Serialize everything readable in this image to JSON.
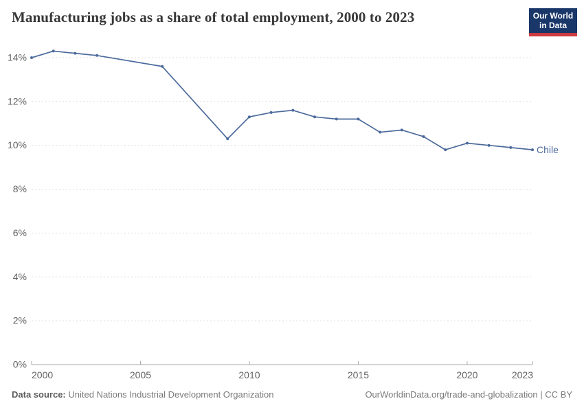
{
  "header": {
    "title": "Manufacturing jobs as a share of total employment, 2000 to 2023",
    "logo": {
      "line1": "Our World",
      "line2": "in Data"
    }
  },
  "chart_data": {
    "type": "line",
    "title": "Manufacturing jobs as a share of total employment, 2000 to 2023",
    "series": [
      {
        "name": "Chile",
        "color": "#4C6A9C",
        "x": [
          2000,
          2001,
          2002,
          2003,
          2006,
          2009,
          2010,
          2011,
          2012,
          2013,
          2014,
          2015,
          2016,
          2017,
          2018,
          2019,
          2020,
          2021,
          2022,
          2023
        ],
        "values": [
          14.0,
          14.3,
          14.2,
          14.1,
          13.6,
          10.3,
          11.3,
          11.5,
          11.6,
          11.3,
          11.2,
          11.2,
          10.6,
          10.7,
          10.4,
          9.8,
          10.1,
          10.0,
          9.9,
          9.8
        ]
      }
    ],
    "xlabel": "",
    "ylabel": "",
    "xlim": [
      2000,
      2023
    ],
    "ylim": [
      0,
      14
    ],
    "yticks": [
      0,
      2,
      4,
      6,
      8,
      10,
      12,
      14
    ],
    "ytick_labels": [
      "0%",
      "2%",
      "4%",
      "6%",
      "8%",
      "10%",
      "12%",
      "14%"
    ],
    "xticks": [
      2000,
      2005,
      2010,
      2015,
      2020,
      2023
    ],
    "xtick_labels": [
      "2000",
      "2005",
      "2010",
      "2015",
      "2020",
      "2023"
    ],
    "grid": "horizontal-dashed",
    "legend_position": "end-of-line-label"
  },
  "footer": {
    "datasource_label": "Data source:",
    "datasource_value": " United Nations Industrial Development Organization",
    "link_text": "OurWorldinData.org/trade-and-globalization | CC BY"
  },
  "colors": {
    "line": "#4C6A9C",
    "grid": "#dedede",
    "axis": "#a8a8a8",
    "tick_text": "#636363",
    "title_text": "#383838",
    "logo_bg": "#193769",
    "logo_accent": "#CB3A3F"
  }
}
